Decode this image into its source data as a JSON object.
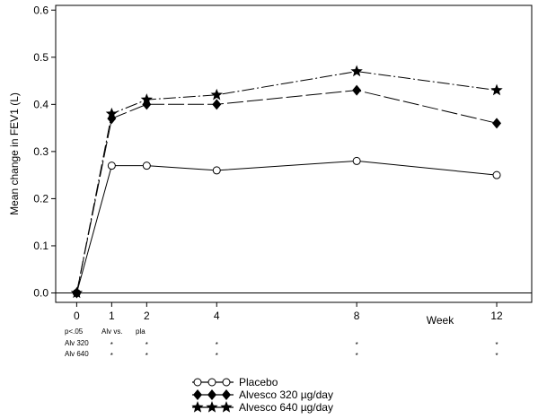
{
  "chart_data": {
    "type": "line",
    "title": "",
    "xlabel": "Week",
    "ylabel": "Mean change in FEV1 (L)",
    "x": [
      0,
      1,
      2,
      4,
      8,
      12
    ],
    "x_ticks": [
      "0",
      "1",
      "2",
      "4",
      "8",
      "12"
    ],
    "xlim": [
      -0.6,
      13.0
    ],
    "ylim": [
      -0.02,
      0.61
    ],
    "y_ticks": [
      "0.0",
      "0.1",
      "0.2",
      "0.3",
      "0.4",
      "0.5",
      "0.6"
    ],
    "grid": false,
    "legend_position": "bottom",
    "series": [
      {
        "name": "Placebo",
        "marker": "open-circle",
        "line_style": "solid",
        "color": "#000000",
        "values": [
          0.0,
          0.27,
          0.27,
          0.26,
          0.28,
          0.25
        ]
      },
      {
        "name": "Alvesco 320 µg/day",
        "marker": "diamond",
        "line_style": "long-dash",
        "color": "#000000",
        "values": [
          0.0,
          0.37,
          0.4,
          0.4,
          0.43,
          0.36
        ]
      },
      {
        "name": "Alvesco 640 µg/day",
        "marker": "star",
        "line_style": "dash-dot",
        "color": "#000000",
        "values": [
          0.0,
          0.38,
          0.41,
          0.42,
          0.47,
          0.43
        ]
      }
    ],
    "significance": {
      "header": [
        "p<.05",
        "Alv vs.",
        "pla"
      ],
      "rows": [
        {
          "label": "Alv 320",
          "marks": [
            "*",
            "*",
            "*",
            "*",
            "*"
          ],
          "weeks": [
            1,
            2,
            4,
            8,
            12
          ]
        },
        {
          "label": "Alv 640",
          "marks": [
            "*",
            "*",
            "*",
            "*",
            "*"
          ],
          "weeks": [
            1,
            2,
            4,
            8,
            12
          ]
        }
      ]
    }
  }
}
